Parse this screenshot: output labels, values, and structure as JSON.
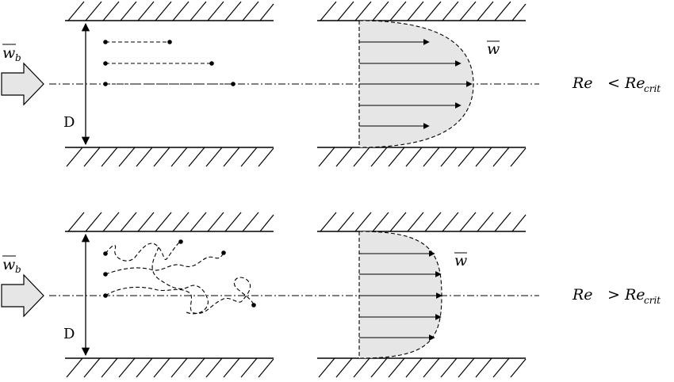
{
  "labels": {
    "mean_velocity_bulk": "w",
    "bulk_subscript": "b",
    "diameter": "D",
    "mean_velocity": "w"
  },
  "panels": [
    {
      "id": "laminar",
      "condition": {
        "re": "Re",
        "op": "<",
        "recrit": "Re",
        "crit_sub": "crit"
      }
    },
    {
      "id": "turbulent",
      "condition": {
        "re": "Re",
        "op": ">",
        "recrit": "Re",
        "crit_sub": "crit"
      }
    }
  ],
  "colors": {
    "profile_fill": "#e6e6e6",
    "inlet_arrow_fill": "#e6e6e6",
    "stroke": "#000000"
  }
}
